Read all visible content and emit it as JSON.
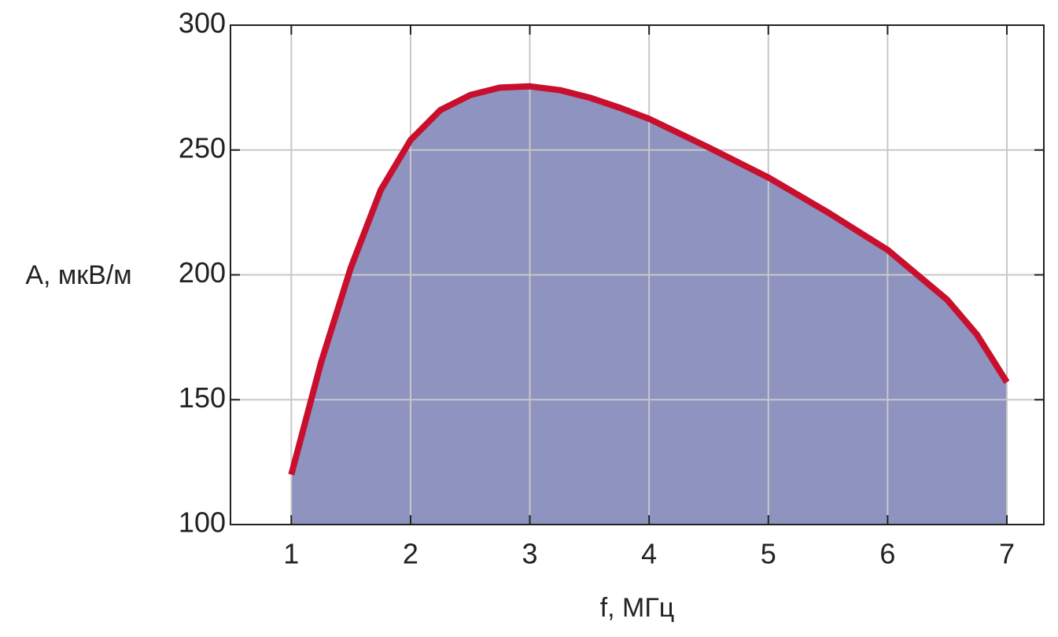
{
  "chart_data": {
    "type": "area",
    "x_label": "f, МГц",
    "y_label": "A, мкВ/м",
    "x": [
      1,
      1.25,
      1.5,
      1.75,
      2,
      2.25,
      2.5,
      2.75,
      3,
      3.25,
      3.5,
      3.75,
      4,
      4.5,
      5,
      5.5,
      6,
      6.5,
      6.75,
      7
    ],
    "values": [
      120,
      165,
      203,
      234,
      254,
      266,
      272,
      275,
      275.5,
      274,
      271,
      267,
      262.5,
      251,
      239,
      225,
      210,
      190,
      176,
      157
    ],
    "color": "#c8102e",
    "fill_color": "#8e93bf",
    "xlim": [
      0.49,
      7.31
    ],
    "ylim": [
      100,
      300
    ],
    "xticks": [
      1,
      2,
      3,
      4,
      5,
      6,
      7
    ],
    "yticks": [
      100,
      150,
      200,
      250,
      300
    ],
    "grid": true
  }
}
